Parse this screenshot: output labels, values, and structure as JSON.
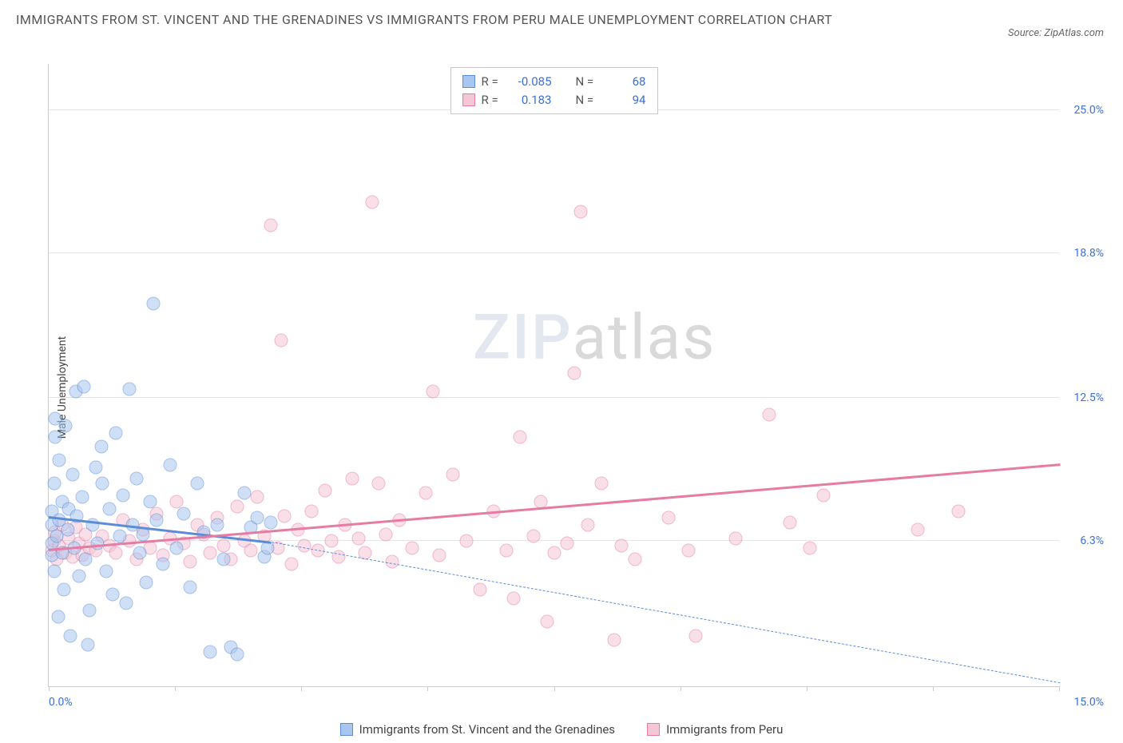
{
  "title": "IMMIGRANTS FROM ST. VINCENT AND THE GRENADINES VS IMMIGRANTS FROM PERU MALE UNEMPLOYMENT CORRELATION CHART",
  "source": "Source: ZipAtlas.com",
  "y_axis_label": "Male Unemployment",
  "watermark_a": "ZIP",
  "watermark_b": "atlas",
  "chart": {
    "type": "scatter",
    "background_color": "#ffffff",
    "grid_color": "#e5e5e5",
    "axis_color": "#cccccc",
    "xlim": [
      0,
      15
    ],
    "ylim": [
      0,
      27
    ],
    "y_ticks": [
      {
        "value": 6.3,
        "label": "6.3%"
      },
      {
        "value": 12.5,
        "label": "12.5%"
      },
      {
        "value": 18.8,
        "label": "18.8%"
      },
      {
        "value": 25.0,
        "label": "25.0%"
      }
    ],
    "x_ticks": [
      0,
      1.875,
      3.75,
      5.625,
      7.5,
      9.375,
      11.25,
      13.125,
      15
    ],
    "x_range_left": "0.0%",
    "x_range_right": "15.0%",
    "series": [
      {
        "id": "svg",
        "name": "Immigrants from St. Vincent and the Grenadines",
        "fill": "#a8c6f0",
        "stroke": "#5b8dd6",
        "r_value": "-0.085",
        "n_value": "68",
        "trend": {
          "x1": 0,
          "y1": 7.4,
          "x2": 3.3,
          "y2": 6.3,
          "dash_x1": 3.3,
          "dash_y1": 6.3,
          "dash_x2": 15,
          "dash_y2": 0.2
        },
        "points": [
          [
            0.05,
            6.2
          ],
          [
            0.05,
            7.0
          ],
          [
            0.05,
            7.6
          ],
          [
            0.05,
            5.7
          ],
          [
            0.08,
            8.8
          ],
          [
            0.08,
            5.0
          ],
          [
            0.1,
            10.8
          ],
          [
            0.1,
            11.6
          ],
          [
            0.12,
            6.5
          ],
          [
            0.14,
            3.0
          ],
          [
            0.15,
            9.8
          ],
          [
            0.15,
            7.2
          ],
          [
            0.2,
            8.0
          ],
          [
            0.2,
            5.8
          ],
          [
            0.22,
            4.2
          ],
          [
            0.25,
            11.3
          ],
          [
            0.28,
            6.8
          ],
          [
            0.3,
            7.7
          ],
          [
            0.32,
            2.2
          ],
          [
            0.35,
            9.2
          ],
          [
            0.38,
            6.0
          ],
          [
            0.4,
            12.8
          ],
          [
            0.42,
            7.4
          ],
          [
            0.45,
            4.8
          ],
          [
            0.5,
            8.2
          ],
          [
            0.52,
            13.0
          ],
          [
            0.55,
            5.5
          ],
          [
            0.58,
            1.8
          ],
          [
            0.6,
            3.3
          ],
          [
            0.65,
            7.0
          ],
          [
            0.7,
            9.5
          ],
          [
            0.72,
            6.2
          ],
          [
            0.78,
            10.4
          ],
          [
            0.8,
            8.8
          ],
          [
            0.85,
            5.0
          ],
          [
            0.9,
            7.7
          ],
          [
            0.95,
            4.0
          ],
          [
            1.0,
            11.0
          ],
          [
            1.05,
            6.5
          ],
          [
            1.1,
            8.3
          ],
          [
            1.15,
            3.6
          ],
          [
            1.2,
            12.9
          ],
          [
            1.25,
            7.0
          ],
          [
            1.3,
            9.0
          ],
          [
            1.35,
            5.8
          ],
          [
            1.4,
            6.6
          ],
          [
            1.45,
            4.5
          ],
          [
            1.5,
            8.0
          ],
          [
            1.55,
            16.6
          ],
          [
            1.6,
            7.2
          ],
          [
            1.7,
            5.3
          ],
          [
            1.8,
            9.6
          ],
          [
            1.9,
            6.0
          ],
          [
            2.0,
            7.5
          ],
          [
            2.1,
            4.3
          ],
          [
            2.2,
            8.8
          ],
          [
            2.3,
            6.7
          ],
          [
            2.4,
            1.5
          ],
          [
            2.5,
            7.0
          ],
          [
            2.6,
            5.5
          ],
          [
            2.7,
            1.7
          ],
          [
            2.8,
            1.4
          ],
          [
            2.9,
            8.4
          ],
          [
            3.0,
            6.9
          ],
          [
            3.1,
            7.3
          ],
          [
            3.2,
            5.6
          ],
          [
            3.25,
            6.0
          ],
          [
            3.3,
            7.1
          ]
        ]
      },
      {
        "id": "peru",
        "name": "Immigrants from Peru",
        "fill": "#f5c6d6",
        "stroke": "#e67ba3",
        "r_value": "0.183",
        "n_value": "94",
        "trend": {
          "x1": 0,
          "y1": 6.0,
          "x2": 15,
          "y2": 9.7,
          "solid_full": true
        },
        "points": [
          [
            0.05,
            5.9
          ],
          [
            0.08,
            6.3
          ],
          [
            0.1,
            6.7
          ],
          [
            0.12,
            5.5
          ],
          [
            0.15,
            6.1
          ],
          [
            0.2,
            7.0
          ],
          [
            0.25,
            5.8
          ],
          [
            0.3,
            6.4
          ],
          [
            0.35,
            5.6
          ],
          [
            0.4,
            6.9
          ],
          [
            0.45,
            6.2
          ],
          [
            0.5,
            5.7
          ],
          [
            0.55,
            6.6
          ],
          [
            0.6,
            6.0
          ],
          [
            0.7,
            5.9
          ],
          [
            0.8,
            6.5
          ],
          [
            0.9,
            6.1
          ],
          [
            1.0,
            5.8
          ],
          [
            1.1,
            7.2
          ],
          [
            1.2,
            6.3
          ],
          [
            1.3,
            5.5
          ],
          [
            1.4,
            6.8
          ],
          [
            1.5,
            6.0
          ],
          [
            1.6,
            7.5
          ],
          [
            1.7,
            5.7
          ],
          [
            1.8,
            6.4
          ],
          [
            1.9,
            8.0
          ],
          [
            2.0,
            6.2
          ],
          [
            2.1,
            5.4
          ],
          [
            2.2,
            7.0
          ],
          [
            2.3,
            6.6
          ],
          [
            2.4,
            5.8
          ],
          [
            2.5,
            7.3
          ],
          [
            2.6,
            6.1
          ],
          [
            2.7,
            5.5
          ],
          [
            2.8,
            7.8
          ],
          [
            2.9,
            6.3
          ],
          [
            3.0,
            5.9
          ],
          [
            3.1,
            8.2
          ],
          [
            3.2,
            6.5
          ],
          [
            3.3,
            20.0
          ],
          [
            3.4,
            6.0
          ],
          [
            3.45,
            15.0
          ],
          [
            3.5,
            7.4
          ],
          [
            3.6,
            5.3
          ],
          [
            3.7,
            6.8
          ],
          [
            3.8,
            6.1
          ],
          [
            3.9,
            7.6
          ],
          [
            4.0,
            5.9
          ],
          [
            4.1,
            8.5
          ],
          [
            4.2,
            6.3
          ],
          [
            4.3,
            5.6
          ],
          [
            4.4,
            7.0
          ],
          [
            4.5,
            9.0
          ],
          [
            4.6,
            6.4
          ],
          [
            4.7,
            5.8
          ],
          [
            4.8,
            21.0
          ],
          [
            4.9,
            8.8
          ],
          [
            5.0,
            6.6
          ],
          [
            5.1,
            5.4
          ],
          [
            5.2,
            7.2
          ],
          [
            5.4,
            6.0
          ],
          [
            5.6,
            8.4
          ],
          [
            5.7,
            12.8
          ],
          [
            5.8,
            5.7
          ],
          [
            6.0,
            9.2
          ],
          [
            6.2,
            6.3
          ],
          [
            6.4,
            4.2
          ],
          [
            6.6,
            7.6
          ],
          [
            6.8,
            5.9
          ],
          [
            6.9,
            3.8
          ],
          [
            7.0,
            10.8
          ],
          [
            7.2,
            6.5
          ],
          [
            7.3,
            8.0
          ],
          [
            7.4,
            2.8
          ],
          [
            7.5,
            5.8
          ],
          [
            7.7,
            6.2
          ],
          [
            7.8,
            13.6
          ],
          [
            7.9,
            20.6
          ],
          [
            8.0,
            7.0
          ],
          [
            8.2,
            8.8
          ],
          [
            8.4,
            2.0
          ],
          [
            8.5,
            6.1
          ],
          [
            8.7,
            5.5
          ],
          [
            9.2,
            7.3
          ],
          [
            9.5,
            5.9
          ],
          [
            9.6,
            2.2
          ],
          [
            10.2,
            6.4
          ],
          [
            10.7,
            11.8
          ],
          [
            11.0,
            7.1
          ],
          [
            11.3,
            6.0
          ],
          [
            11.5,
            8.3
          ],
          [
            12.9,
            6.8
          ],
          [
            13.5,
            7.6
          ]
        ]
      }
    ],
    "legend_labels": {
      "r": "R =",
      "n": "N ="
    }
  }
}
